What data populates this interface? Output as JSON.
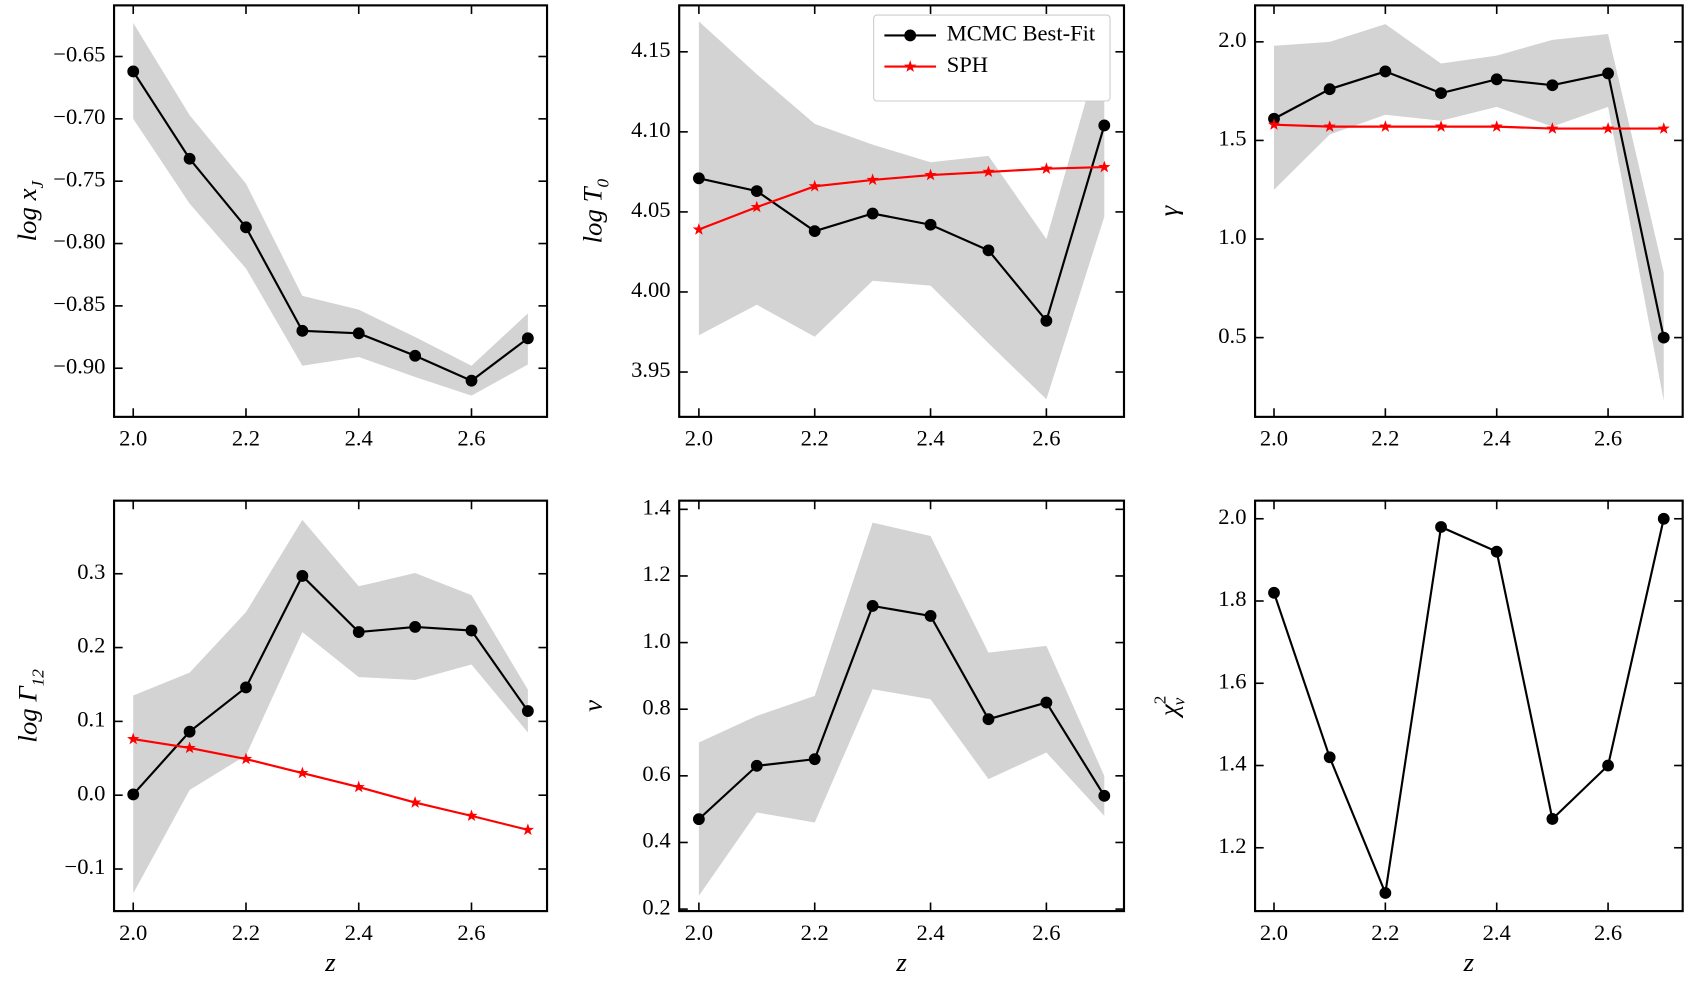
{
  "chart_data": [
    {
      "type": "line",
      "ylabel": {
        "text": "log x",
        "sub": "J"
      },
      "x": [
        2.0,
        2.1,
        2.2,
        2.3,
        2.4,
        2.5,
        2.6,
        2.7
      ],
      "xlim": [
        1.966,
        2.734
      ],
      "xticks": [
        {
          "value": 2,
          "label": "2.0"
        },
        {
          "value": 2.2,
          "label": "2.2"
        },
        {
          "value": 2.4,
          "label": "2.4"
        },
        {
          "value": 2.6,
          "label": "2.6"
        }
      ],
      "ylim": [
        -0.939,
        -0.609
      ],
      "yticks": [
        {
          "value": -0.9,
          "label": "−0.90"
        },
        {
          "value": -0.85,
          "label": "−0.85"
        },
        {
          "value": -0.8,
          "label": "−0.80"
        },
        {
          "value": -0.75,
          "label": "−0.75"
        },
        {
          "value": -0.7,
          "label": "−0.70"
        },
        {
          "value": -0.65,
          "label": "−0.65"
        }
      ],
      "series": [
        {
          "color": "#000000",
          "marker": "circle",
          "values": [
            -0.662,
            -0.732,
            -0.787,
            -0.87,
            -0.872,
            -0.89,
            -0.91,
            -0.876
          ],
          "band": {
            "color": "#d3d3d3",
            "upper": [
              -0.623,
              -0.697,
              -0.752,
              -0.842,
              -0.853,
              -0.875,
              -0.898,
              -0.856
            ],
            "lower": [
              -0.7,
              -0.768,
              -0.82,
              -0.898,
              -0.891,
              -0.907,
              -0.922,
              -0.897
            ]
          }
        }
      ]
    },
    {
      "type": "line",
      "ylabel": {
        "text": "log T",
        "sub": "0"
      },
      "x": [
        2.0,
        2.1,
        2.2,
        2.3,
        2.4,
        2.5,
        2.6,
        2.7
      ],
      "xlim": [
        1.966,
        2.734
      ],
      "xticks": [
        {
          "value": 2,
          "label": "2.0"
        },
        {
          "value": 2.2,
          "label": "2.2"
        },
        {
          "value": 2.4,
          "label": "2.4"
        },
        {
          "value": 2.6,
          "label": "2.6"
        }
      ],
      "ylim": [
        3.922,
        4.179
      ],
      "yticks": [
        3.95,
        {
          "value": 4,
          "label": "4.00"
        },
        4.05,
        {
          "value": 4.1,
          "label": "4.10"
        },
        4.15
      ],
      "legend": "upper right",
      "series": [
        {
          "name": "MCMC Best-Fit",
          "color": "#000000",
          "marker": "circle",
          "values": [
            4.071,
            4.063,
            4.038,
            4.049,
            4.042,
            4.026,
            3.982,
            4.104
          ],
          "band": {
            "color": "#d3d3d3",
            "upper": [
              4.169,
              4.136,
              4.105,
              4.092,
              4.081,
              4.085,
              4.033,
              4.16
            ],
            "lower": [
              3.973,
              3.992,
              3.972,
              4.007,
              4.004,
              3.968,
              3.933,
              4.047
            ]
          }
        },
        {
          "name": "SPH",
          "color": "#ff0000",
          "marker": "star",
          "values": [
            4.039,
            4.053,
            4.066,
            4.07,
            4.073,
            4.075,
            4.077,
            4.078
          ]
        }
      ]
    },
    {
      "type": "line",
      "ylabel": {
        "text": "γ"
      },
      "x": [
        2.0,
        2.1,
        2.2,
        2.3,
        2.4,
        2.5,
        2.6,
        2.7
      ],
      "xlim": [
        1.966,
        2.734
      ],
      "xticks": [
        {
          "value": 2,
          "label": "2.0"
        },
        {
          "value": 2.2,
          "label": "2.2"
        },
        {
          "value": 2.4,
          "label": "2.4"
        },
        {
          "value": 2.6,
          "label": "2.6"
        }
      ],
      "ylim": [
        0.098,
        2.185
      ],
      "yticks": [
        0.5,
        {
          "value": 1,
          "label": "1.0"
        },
        1.5,
        {
          "value": 2,
          "label": "2.0"
        }
      ],
      "series": [
        {
          "color": "#000000",
          "marker": "circle",
          "values": [
            1.61,
            1.76,
            1.85,
            1.74,
            1.81,
            1.78,
            1.84,
            0.5
          ],
          "band": {
            "color": "#d3d3d3",
            "upper": [
              1.98,
              2.0,
              2.09,
              1.89,
              1.93,
              2.01,
              2.04,
              0.83
            ],
            "lower": [
              1.25,
              1.53,
              1.63,
              1.6,
              1.67,
              1.57,
              1.67,
              0.18
            ]
          }
        },
        {
          "color": "#ff0000",
          "marker": "star",
          "values": [
            1.58,
            1.57,
            1.57,
            1.57,
            1.57,
            1.56,
            1.56,
            1.56
          ]
        }
      ]
    },
    {
      "type": "line",
      "ylabel": {
        "text": "log Γ",
        "sub": "12"
      },
      "xlabel": "z",
      "x": [
        2.0,
        2.1,
        2.2,
        2.3,
        2.4,
        2.5,
        2.6,
        2.7
      ],
      "xlim": [
        1.966,
        2.734
      ],
      "xticks": [
        {
          "value": 2,
          "label": "2.0"
        },
        {
          "value": 2.2,
          "label": "2.2"
        },
        {
          "value": 2.4,
          "label": "2.4"
        },
        {
          "value": 2.6,
          "label": "2.6"
        }
      ],
      "ylim": [
        -0.157,
        0.399
      ],
      "yticks": [
        {
          "value": -0.1,
          "label": "−0.1"
        },
        {
          "value": 0,
          "label": "0.0"
        },
        0.1,
        0.2,
        0.3
      ],
      "series": [
        {
          "color": "#000000",
          "marker": "circle",
          "values": [
            0.001,
            0.086,
            0.146,
            0.297,
            0.221,
            0.228,
            0.223,
            0.114
          ],
          "band": {
            "color": "#d3d3d3",
            "upper": [
              0.135,
              0.166,
              0.248,
              0.373,
              0.283,
              0.301,
              0.271,
              0.143
            ],
            "lower": [
              -0.133,
              0.007,
              0.054,
              0.221,
              0.16,
              0.156,
              0.177,
              0.085
            ]
          }
        },
        {
          "color": "#ff0000",
          "marker": "star",
          "values": [
            0.076,
            0.064,
            0.049,
            0.03,
            0.011,
            -0.01,
            -0.028,
            -0.047
          ]
        }
      ]
    },
    {
      "type": "line",
      "ylabel": {
        "text": "ν"
      },
      "xlabel": "z",
      "x": [
        2.0,
        2.1,
        2.2,
        2.3,
        2.4,
        2.5,
        2.6,
        2.7
      ],
      "xlim": [
        1.966,
        2.734
      ],
      "xticks": [
        {
          "value": 2,
          "label": "2.0"
        },
        {
          "value": 2.2,
          "label": "2.2"
        },
        {
          "value": 2.4,
          "label": "2.4"
        },
        {
          "value": 2.6,
          "label": "2.6"
        }
      ],
      "ylim": [
        0.194,
        1.426
      ],
      "yticks": [
        0.2,
        0.4,
        0.6,
        0.8,
        {
          "value": 1,
          "label": "1.0"
        },
        1.2,
        1.4
      ],
      "series": [
        {
          "color": "#000000",
          "marker": "circle",
          "values": [
            0.47,
            0.63,
            0.65,
            1.11,
            1.08,
            0.77,
            0.82,
            0.54
          ],
          "band": {
            "color": "#d3d3d3",
            "upper": [
              0.7,
              0.78,
              0.84,
              1.36,
              1.32,
              0.97,
              0.99,
              0.6
            ],
            "lower": [
              0.24,
              0.49,
              0.46,
              0.86,
              0.83,
              0.59,
              0.67,
              0.48
            ]
          }
        }
      ]
    },
    {
      "type": "line",
      "ylabel": {
        "text": "χ",
        "sup": "2",
        "sub": "ν"
      },
      "xlabel": "z",
      "x": [
        2.0,
        2.1,
        2.2,
        2.3,
        2.4,
        2.5,
        2.6,
        2.7
      ],
      "xlim": [
        1.966,
        2.734
      ],
      "xticks": [
        {
          "value": 2,
          "label": "2.0"
        },
        {
          "value": 2.2,
          "label": "2.2"
        },
        {
          "value": 2.4,
          "label": "2.4"
        },
        {
          "value": 2.6,
          "label": "2.6"
        }
      ],
      "ylim": [
        1.046,
        2.044
      ],
      "yticks": [
        1.2,
        1.4,
        1.6,
        1.8,
        {
          "value": 2,
          "label": "2.0"
        }
      ],
      "series": [
        {
          "color": "#000000",
          "marker": "circle",
          "values": [
            1.82,
            1.42,
            1.09,
            1.98,
            1.92,
            1.27,
            1.4,
            2.0
          ]
        }
      ]
    }
  ]
}
